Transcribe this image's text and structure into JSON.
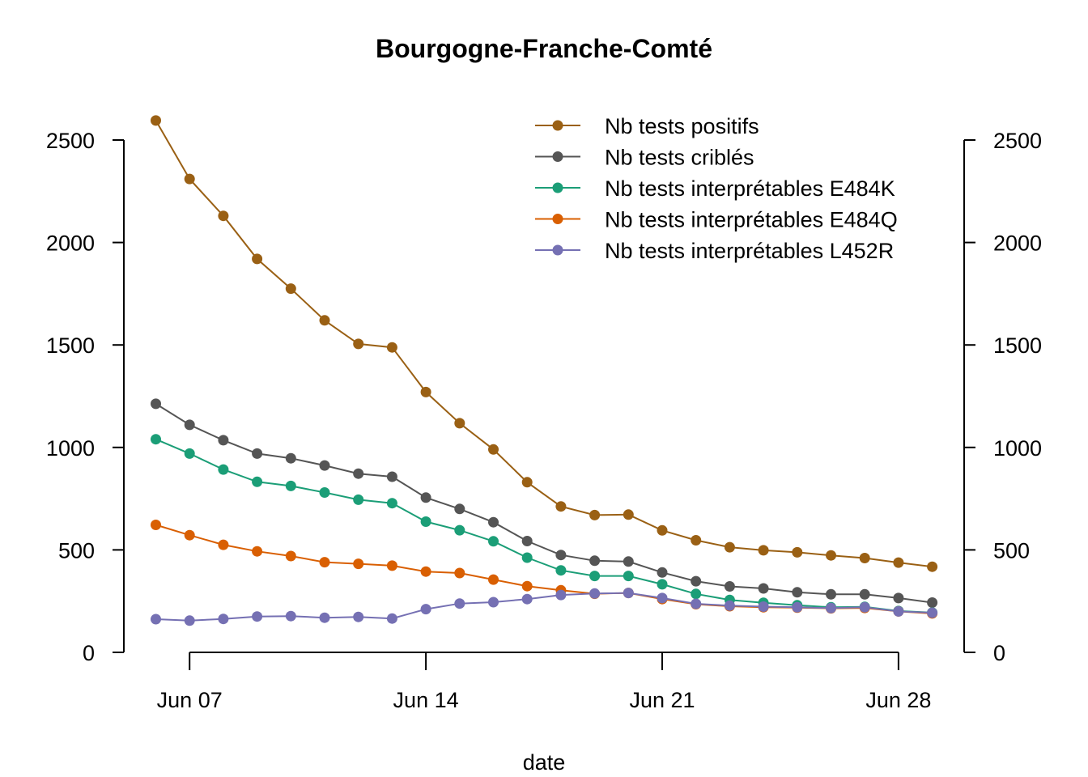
{
  "chart_data": {
    "type": "line",
    "title": "Bourgogne-Franche-Comté",
    "xlabel": "date",
    "ylabel": "",
    "x": [
      "2021-06-06",
      "2021-06-07",
      "2021-06-08",
      "2021-06-09",
      "2021-06-10",
      "2021-06-11",
      "2021-06-12",
      "2021-06-13",
      "2021-06-14",
      "2021-06-15",
      "2021-06-16",
      "2021-06-17",
      "2021-06-18",
      "2021-06-19",
      "2021-06-20",
      "2021-06-21",
      "2021-06-22",
      "2021-06-23",
      "2021-06-24",
      "2021-06-25",
      "2021-06-26",
      "2021-06-27",
      "2021-06-28",
      "2021-06-29"
    ],
    "x_ticks": [
      "Jun 07",
      "Jun 14",
      "Jun 21",
      "Jun 28"
    ],
    "y_ticks": [
      0,
      500,
      1000,
      1500,
      2000,
      2500
    ],
    "ylim": [
      0,
      2600
    ],
    "y_axis_right": true,
    "legend_position": "top-right",
    "series": [
      {
        "name": "Nb tests positifs",
        "color": "#9A6014",
        "values": [
          2595,
          2310,
          2130,
          1920,
          1775,
          1620,
          1505,
          1488,
          1270,
          1118,
          990,
          830,
          712,
          670,
          672,
          595,
          547,
          513,
          498,
          488,
          473,
          460,
          438,
          418
        ]
      },
      {
        "name": "Nb tests criblés",
        "color": "#555555",
        "values": [
          1213,
          1110,
          1035,
          970,
          947,
          912,
          872,
          857,
          755,
          700,
          635,
          543,
          475,
          447,
          443,
          390,
          347,
          322,
          312,
          293,
          283,
          283,
          265,
          243
        ]
      },
      {
        "name": "Nb tests interprétables E484K",
        "color": "#1B9E77",
        "values": [
          1040,
          970,
          892,
          832,
          812,
          780,
          745,
          728,
          638,
          596,
          542,
          462,
          400,
          373,
          373,
          332,
          285,
          256,
          242,
          230,
          220,
          222,
          202,
          194
        ]
      },
      {
        "name": "Nb tests interprétables E484Q",
        "color": "#D95F02",
        "values": [
          622,
          572,
          525,
          493,
          470,
          440,
          432,
          423,
          394,
          387,
          355,
          323,
          303,
          286,
          290,
          260,
          235,
          225,
          220,
          218,
          215,
          217,
          200,
          190
        ]
      },
      {
        "name": "Nb tests interprétables L452R",
        "color": "#7570B3",
        "values": [
          162,
          155,
          163,
          175,
          177,
          169,
          173,
          165,
          211,
          238,
          245,
          260,
          280,
          287,
          290,
          265,
          237,
          228,
          223,
          220,
          216,
          220,
          200,
          193
        ]
      }
    ]
  }
}
